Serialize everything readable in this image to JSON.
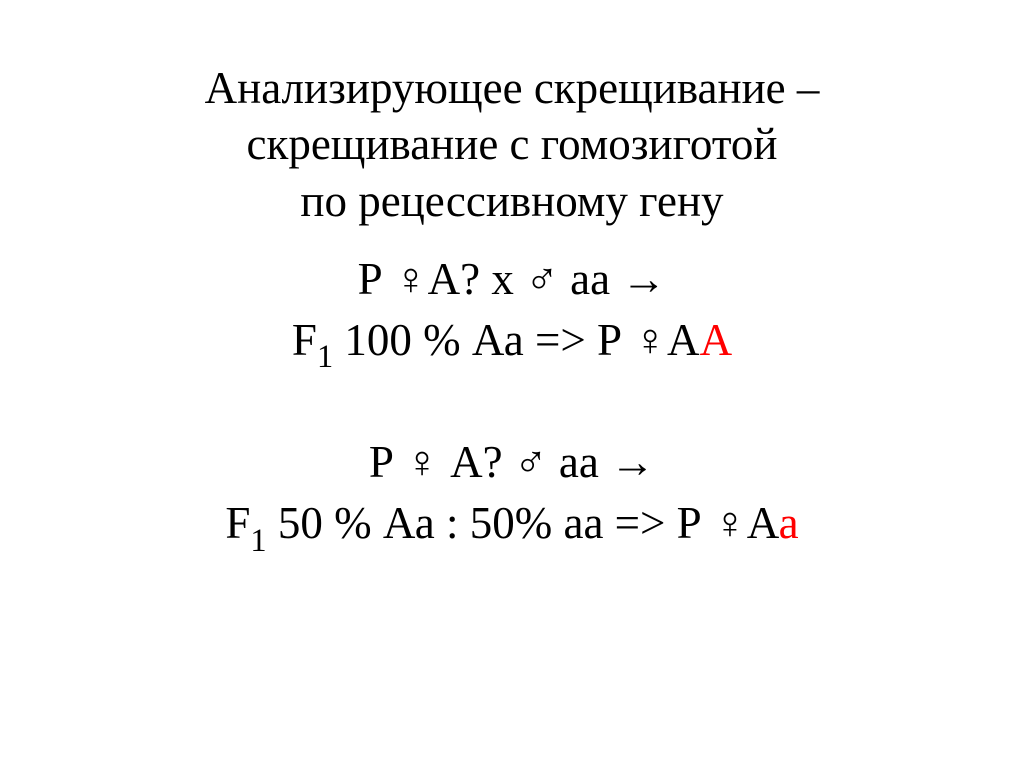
{
  "title": {
    "line1": "Анализирующее скрещивание –",
    "line2": "скрещивание с гомозиготой",
    "line3": "по рецессивному гену"
  },
  "case1": {
    "p_left": "Р   ♀А?   х   ♂ аа  →",
    "f1_prefix": "F",
    "f1_sub": "1",
    "f1_mid": " 100 % Аа => Р   ♀А",
    "f1_red": "А"
  },
  "case2": {
    "p_left": "Р ♀ А?   ♂ аа →",
    "f1_prefix": "F",
    "f1_sub": "1",
    "f1_mid": " 50 % Аа : 50% аа => Р   ♀А",
    "f1_red": "а"
  },
  "colors": {
    "text": "#000000",
    "highlight": "#ff0000",
    "background": "#ffffff"
  }
}
